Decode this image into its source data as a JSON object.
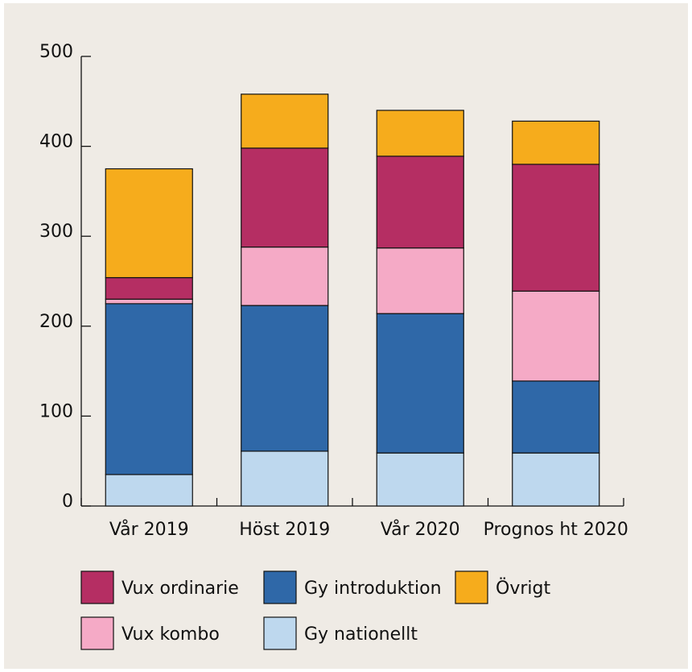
{
  "chart_data": {
    "type": "bar",
    "stacked": true,
    "title": "",
    "xlabel": "",
    "ylabel": "",
    "ylim": [
      0,
      500
    ],
    "yticks": [
      0,
      100,
      200,
      300,
      400,
      500
    ],
    "ytick_labels": [
      "0",
      "100",
      "200",
      "300",
      "400",
      "500"
    ],
    "categories": [
      "Vår 2019",
      "Höst 2019",
      "Vår 2020",
      "Prognos ht 2020"
    ],
    "series": [
      {
        "name": "Gy nationellt",
        "color": "#bed8ee",
        "values": [
          35,
          61,
          59,
          59
        ]
      },
      {
        "name": "Gy introduktion",
        "color": "#2f68a8",
        "values": [
          190,
          162,
          155,
          80
        ]
      },
      {
        "name": "Vux kombo",
        "color": "#f5aac6",
        "values": [
          5,
          65,
          73,
          100
        ]
      },
      {
        "name": "Vux ordinarie",
        "color": "#b52e63",
        "values": [
          24,
          110,
          102,
          141
        ]
      },
      {
        "name": "Övrigt",
        "color": "#f6ac1c",
        "values": [
          121,
          60,
          51,
          48
        ]
      }
    ],
    "legend": {
      "placement": "bottom",
      "order": [
        "Vux ordinarie",
        "Gy introduktion",
        "Övrigt",
        "Vux kombo",
        "Gy nationellt"
      ]
    },
    "grid": false,
    "background": "#efebe5"
  }
}
